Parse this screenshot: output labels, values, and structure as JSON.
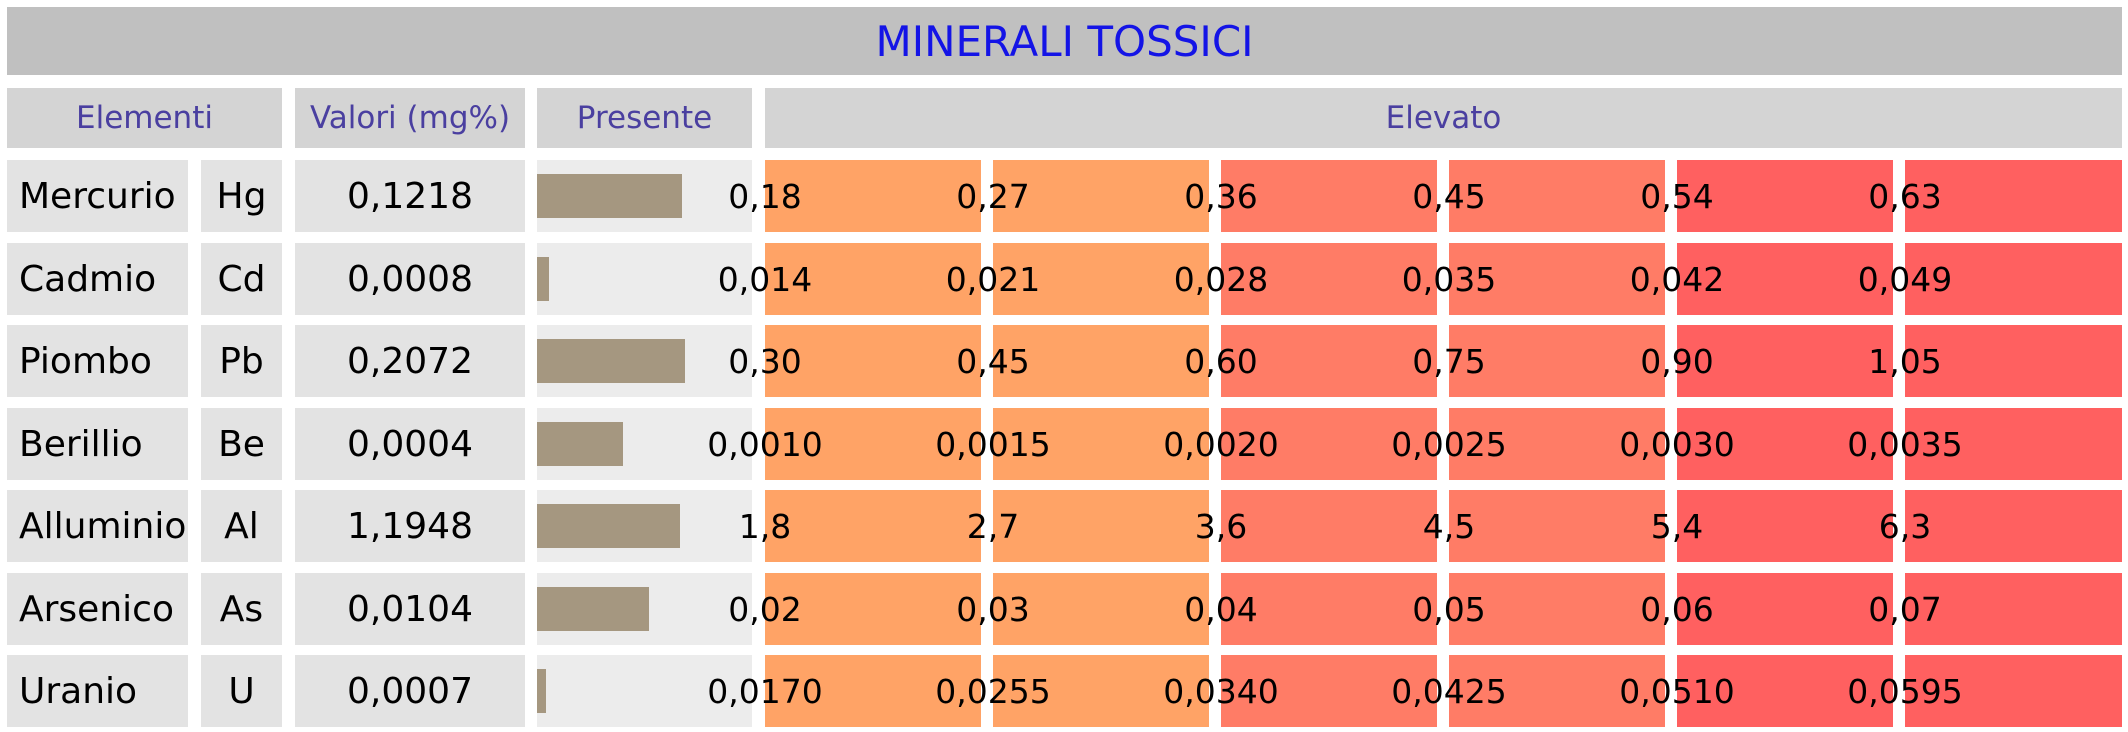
{
  "title": "MINERALI TOSSICI",
  "headers": {
    "elements": "Elementi",
    "values": "Valori (mg%)",
    "present": "Presente",
    "elevated": "Elevato"
  },
  "colors": {
    "title_text": "#1414e6",
    "header_text": "#4a3fa0",
    "bar": "#a59780",
    "zone_orange": "#ffa366",
    "zone_salmon": "#ff7c66",
    "zone_red": "#ff6060"
  },
  "chart_data": {
    "type": "table",
    "rows": [
      {
        "name": "Mercurio",
        "symbol": "Hg",
        "value_label": "0,1218",
        "value": 0.1218,
        "threshold": 0.18,
        "ticks": [
          "0,18",
          "0,27",
          "0,36",
          "0,45",
          "0,54",
          "0,63"
        ]
      },
      {
        "name": "Cadmio",
        "symbol": "Cd",
        "value_label": "0,0008",
        "value": 0.0008,
        "threshold": 0.014,
        "ticks": [
          "0,014",
          "0,021",
          "0,028",
          "0,035",
          "0,042",
          "0,049"
        ]
      },
      {
        "name": "Piombo",
        "symbol": "Pb",
        "value_label": "0,2072",
        "value": 0.2072,
        "threshold": 0.3,
        "ticks": [
          "0,30",
          "0,45",
          "0,60",
          "0,75",
          "0,90",
          "1,05"
        ]
      },
      {
        "name": "Berillio",
        "symbol": "Be",
        "value_label": "0,0004",
        "value": 0.0004,
        "threshold": 0.001,
        "ticks": [
          "0,0010",
          "0,0015",
          "0,0020",
          "0,0025",
          "0,0030",
          "0,0035"
        ]
      },
      {
        "name": "Alluminio",
        "symbol": "Al",
        "value_label": "1,1948",
        "value": 1.1948,
        "threshold": 1.8,
        "ticks": [
          "1,8",
          "2,7",
          "3,6",
          "4,5",
          "5,4",
          "6,3"
        ]
      },
      {
        "name": "Arsenico",
        "symbol": "As",
        "value_label": "0,0104",
        "value": 0.0104,
        "threshold": 0.02,
        "ticks": [
          "0,02",
          "0,03",
          "0,04",
          "0,05",
          "0,06",
          "0,07"
        ]
      },
      {
        "name": "Uranio",
        "symbol": "U",
        "value_label": "0,0007",
        "value": 0.0007,
        "threshold": 0.017,
        "ticks": [
          "0,0170",
          "0,0255",
          "0,0340",
          "0,0425",
          "0,0510",
          "0,0595"
        ]
      }
    ]
  }
}
